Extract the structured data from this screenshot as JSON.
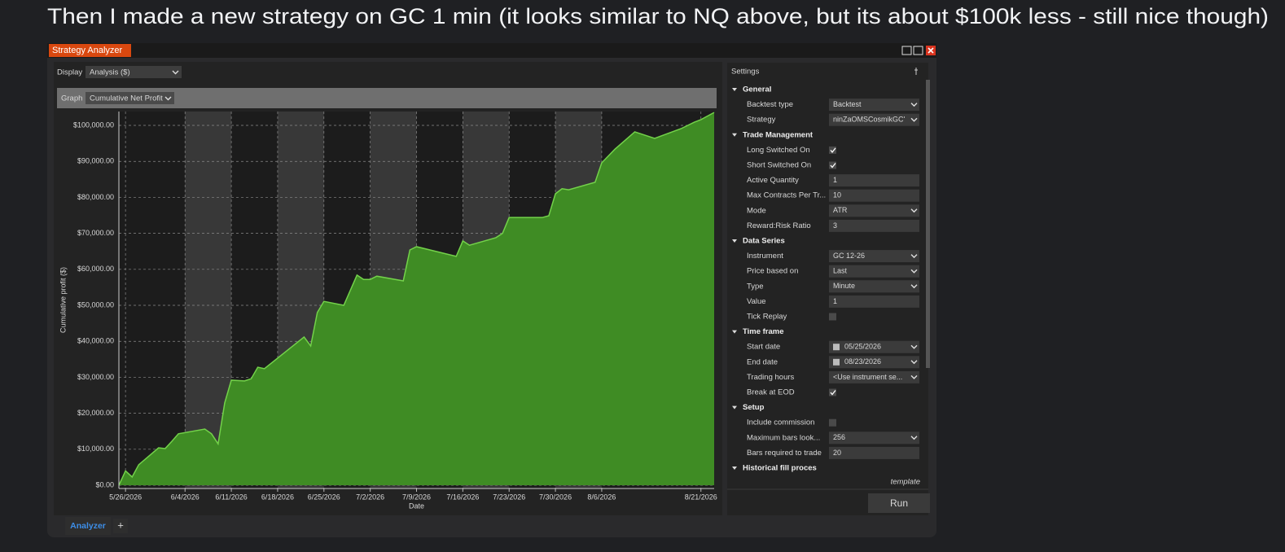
{
  "caption": "Then I made a new strategy on GC 1 min (it looks similar to NQ above, but its about $100k less - still nice though)",
  "window": {
    "title": "Strategy Analyzer"
  },
  "display": {
    "label": "Display",
    "value": "Analysis ($)"
  },
  "graph": {
    "label": "Graph",
    "value": "Cumulative Net Profit"
  },
  "chart_data": {
    "type": "area",
    "ylabel": "Cumulative profit ($)",
    "xlabel": "Date",
    "x": [
      "5/25/2026",
      "5/26/2026",
      "5/27/2026",
      "5/28/2026",
      "5/31/2026",
      "6/1/2026",
      "6/2/2026",
      "6/3/2026",
      "6/7/2026",
      "6/8/2026",
      "6/9/2026",
      "6/10/2026",
      "6/11/2026",
      "6/13/2026",
      "6/14/2026",
      "6/15/2026",
      "6/16/2026",
      "6/22/2026",
      "6/23/2026",
      "6/24/2026",
      "6/25/2026",
      "6/28/2026",
      "6/30/2026",
      "7/1/2026",
      "7/2/2026",
      "7/3/2026",
      "7/7/2026",
      "7/8/2026",
      "7/9/2026",
      "7/15/2026",
      "7/16/2026",
      "7/17/2026",
      "7/21/2026",
      "7/22/2026",
      "7/23/2026",
      "7/28/2026",
      "7/29/2026",
      "7/30/2026",
      "7/31/2026",
      "8/1/2026",
      "8/5/2026",
      "8/6/2026",
      "8/8/2026",
      "8/11/2026",
      "8/14/2026",
      "8/18/2026",
      "8/20/2026",
      "8/21/2026",
      "8/23/2026"
    ],
    "values": [
      0,
      4000,
      2300,
      5700,
      10400,
      10200,
      12200,
      14300,
      15600,
      14300,
      11500,
      22900,
      29200,
      29000,
      29600,
      32800,
      32400,
      41200,
      38700,
      48000,
      51100,
      50000,
      58400,
      57200,
      57200,
      58100,
      56800,
      65400,
      66300,
      63600,
      67900,
      66700,
      68800,
      70000,
      74400,
      74400,
      74900,
      81000,
      82400,
      82100,
      84200,
      89600,
      93400,
      98200,
      96400,
      99100,
      100900,
      101600,
      103600
    ],
    "xlim": [
      "5/25/2026",
      "8/23/2026"
    ],
    "ylim": [
      -900,
      103850
    ],
    "xticks": [
      "5/26/2026",
      "6/4/2026",
      "6/11/2026",
      "6/18/2026",
      "6/25/2026",
      "7/2/2026",
      "7/9/2026",
      "7/16/2026",
      "7/23/2026",
      "7/30/2026",
      "8/6/2026",
      "8/21/2026"
    ],
    "yticks": [
      {
        "value": 0,
        "label": "$0.00"
      },
      {
        "value": 10000,
        "label": "$10,000.00"
      },
      {
        "value": 20000,
        "label": "$20,000.00"
      },
      {
        "value": 30000,
        "label": "$30,000.00"
      },
      {
        "value": 40000,
        "label": "$40,000.00"
      },
      {
        "value": 50000,
        "label": "$50,000.00"
      },
      {
        "value": 60000,
        "label": "$60,000.00"
      },
      {
        "value": 70000,
        "label": "$70,000.00"
      },
      {
        "value": 80000,
        "label": "$80,000.00"
      },
      {
        "value": 90000,
        "label": "$90,000.00"
      },
      {
        "value": 100000,
        "label": "$100,000.00"
      }
    ],
    "color": "#3f8c24",
    "line_color": "#73d24a",
    "grid": true
  },
  "settings": {
    "title": "Settings",
    "groups": [
      {
        "name": "General",
        "items": [
          {
            "label": "Backtest type",
            "kind": "select",
            "value": "Backtest"
          },
          {
            "label": "Strategy",
            "kind": "select",
            "value": "ninZaOMSCosmikGC'"
          }
        ]
      },
      {
        "name": "Trade Management",
        "items": [
          {
            "label": "Long Switched On",
            "kind": "check",
            "checked": true
          },
          {
            "label": "Short Switched On",
            "kind": "check",
            "checked": true
          },
          {
            "label": "Active Quantity",
            "kind": "text",
            "value": "1"
          },
          {
            "label": "Max Contracts Per Tr...",
            "kind": "text",
            "value": "10"
          },
          {
            "label": "Mode",
            "kind": "select",
            "value": "ATR"
          },
          {
            "label": "Reward:Risk Ratio",
            "kind": "text",
            "value": "3"
          }
        ]
      },
      {
        "name": "Data Series",
        "items": [
          {
            "label": "Instrument",
            "kind": "select",
            "value": "GC 12-26"
          },
          {
            "label": "Price based on",
            "kind": "select",
            "value": "Last"
          },
          {
            "label": "Type",
            "kind": "select",
            "value": "Minute"
          },
          {
            "label": "Value",
            "kind": "text",
            "value": "1"
          },
          {
            "label": "Tick Replay",
            "kind": "check",
            "checked": false
          }
        ]
      },
      {
        "name": "Time frame",
        "items": [
          {
            "label": "Start date",
            "kind": "date",
            "value": "05/25/2026"
          },
          {
            "label": "End date",
            "kind": "date",
            "value": "08/23/2026"
          },
          {
            "label": "Trading hours",
            "kind": "select",
            "value": "<Use instrument se..."
          },
          {
            "label": "Break at EOD",
            "kind": "check",
            "checked": true
          }
        ]
      },
      {
        "name": "Setup",
        "items": [
          {
            "label": "Include commission",
            "kind": "check",
            "checked": false
          },
          {
            "label": "Maximum bars look...",
            "kind": "select",
            "value": "256"
          },
          {
            "label": "Bars required to trade",
            "kind": "text",
            "value": "20"
          }
        ]
      },
      {
        "name": "Historical fill proces",
        "items": []
      }
    ]
  },
  "template": "template",
  "run": "Run",
  "tabs": [
    "Analyzer",
    "+"
  ]
}
